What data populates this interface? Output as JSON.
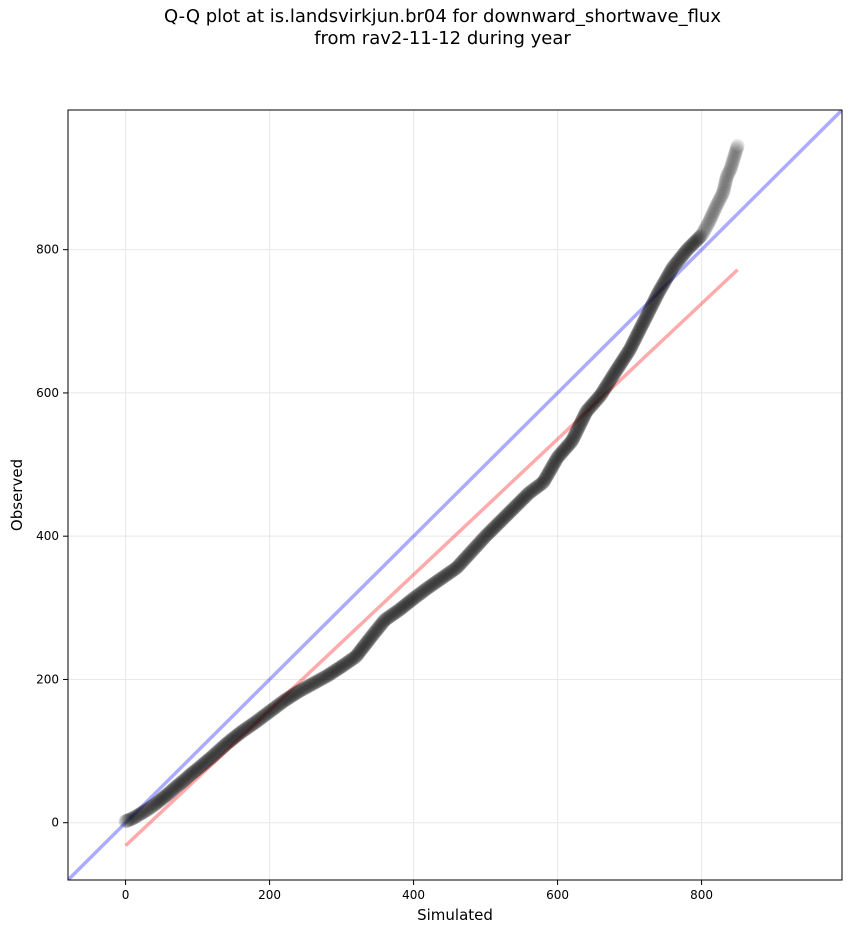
{
  "chart_data": {
    "type": "scatter",
    "title": "Q-Q plot at is.landsvirkjun.br04 for downward_shortwave_flux",
    "subtitle": "from rav2-11-12 during year",
    "xlabel": "Simulated",
    "ylabel": "Observed",
    "xlim": [
      -80,
      995
    ],
    "ylim": [
      -80,
      995
    ],
    "xticks": [
      0,
      200,
      400,
      600,
      800
    ],
    "yticks": [
      0,
      200,
      400,
      600,
      800
    ],
    "grid": true,
    "quantile_points": {
      "x": [
        0,
        10,
        20,
        30,
        40,
        50,
        60,
        70,
        80,
        90,
        100,
        120,
        140,
        160,
        180,
        200,
        220,
        240,
        260,
        280,
        300,
        320,
        340,
        360,
        380,
        400,
        420,
        440,
        460,
        480,
        500,
        520,
        540,
        560,
        580,
        600,
        620,
        640,
        660,
        680,
        700,
        720,
        740,
        760,
        780,
        800,
        810,
        820,
        830,
        835,
        840,
        850
      ],
      "y": [
        2,
        6,
        12,
        18,
        25,
        33,
        41,
        50,
        58,
        67,
        75,
        92,
        110,
        126,
        140,
        155,
        170,
        183,
        194,
        205,
        218,
        232,
        258,
        283,
        297,
        313,
        328,
        342,
        356,
        378,
        400,
        420,
        440,
        460,
        475,
        510,
        533,
        574,
        597,
        629,
        660,
        700,
        740,
        775,
        800,
        820,
        838,
        860,
        880,
        902,
        912,
        945
      ]
    },
    "reference_lines": [
      {
        "name": "1:1",
        "color": "#0000ff",
        "x": [
          -80,
          995
        ],
        "y": [
          -80,
          995
        ]
      },
      {
        "name": "fit",
        "color": "#ff0000",
        "x": [
          0,
          850
        ],
        "y": [
          -32,
          772
        ]
      }
    ],
    "point_color": "#000000"
  }
}
